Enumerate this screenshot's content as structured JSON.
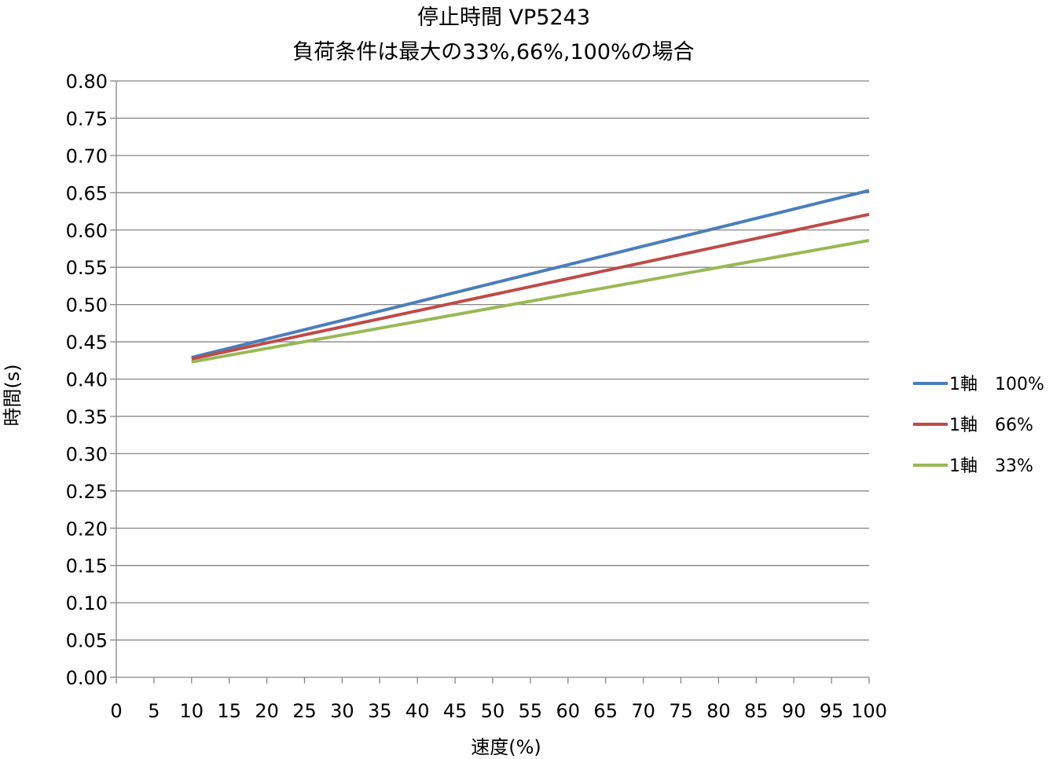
{
  "chart_data": {
    "type": "line",
    "title": [
      "停止時間 VP5243",
      "負荷条件は最大の33%,66%,100%の場合"
    ],
    "xlabel": "速度(%)",
    "ylabel": "時間(s)",
    "xlim": [
      0,
      100
    ],
    "ylim": [
      0,
      0.8
    ],
    "x_ticks": [
      "0",
      "5",
      "10",
      "15",
      "20",
      "25",
      "30",
      "35",
      "40",
      "45",
      "50",
      "55",
      "60",
      "65",
      "70",
      "75",
      "80",
      "85",
      "90",
      "95",
      "100"
    ],
    "y_ticks": [
      "0.00",
      "0.05",
      "0.10",
      "0.15",
      "0.20",
      "0.25",
      "0.30",
      "0.35",
      "0.40",
      "0.45",
      "0.50",
      "0.55",
      "0.60",
      "0.65",
      "0.70",
      "0.75",
      "0.80"
    ],
    "grid": "horizontal",
    "legend_position": "right",
    "series": [
      {
        "name": "1軸　100%",
        "color": "#4a7ebb",
        "x": [
          10,
          100
        ],
        "y": [
          0.429,
          0.653
        ]
      },
      {
        "name": "1軸　66%",
        "color": "#be4b48",
        "x": [
          10,
          100
        ],
        "y": [
          0.427,
          0.621
        ]
      },
      {
        "name": "1軸　33%",
        "color": "#98b954",
        "x": [
          10,
          100
        ],
        "y": [
          0.423,
          0.586
        ]
      }
    ]
  }
}
